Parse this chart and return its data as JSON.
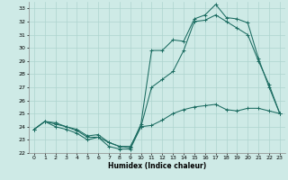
{
  "xlabel": "Humidex (Indice chaleur)",
  "ylabel": "",
  "bg_color": "#ceeae6",
  "grid_color": "#aed4cf",
  "line_color": "#1a6b60",
  "xlim": [
    -0.5,
    23.5
  ],
  "ylim": [
    22,
    33.5
  ],
  "xticks": [
    0,
    1,
    2,
    3,
    4,
    5,
    6,
    7,
    8,
    9,
    10,
    11,
    12,
    13,
    14,
    15,
    16,
    17,
    18,
    19,
    20,
    21,
    22,
    23
  ],
  "yticks": [
    22,
    23,
    24,
    25,
    26,
    27,
    28,
    29,
    30,
    31,
    32,
    33
  ],
  "line1_x": [
    0,
    1,
    2,
    3,
    4,
    5,
    6,
    7,
    8,
    9,
    10,
    11,
    12,
    13,
    14,
    15,
    16,
    17,
    18,
    19,
    20,
    21,
    22,
    23
  ],
  "line1_y": [
    23.8,
    24.4,
    24.3,
    24.0,
    23.7,
    23.2,
    23.2,
    22.8,
    22.5,
    22.5,
    24.0,
    24.1,
    24.5,
    25.0,
    25.3,
    25.5,
    25.6,
    25.7,
    25.3,
    25.2,
    25.4,
    25.4,
    25.2,
    25.0
  ],
  "line2_x": [
    0,
    1,
    2,
    3,
    4,
    5,
    6,
    7,
    8,
    9,
    10,
    11,
    12,
    13,
    14,
    15,
    16,
    17,
    18,
    19,
    20,
    21,
    22,
    23
  ],
  "line2_y": [
    23.8,
    24.4,
    24.0,
    23.8,
    23.5,
    23.0,
    23.2,
    22.5,
    22.3,
    22.3,
    24.0,
    27.0,
    27.6,
    28.2,
    29.8,
    32.0,
    32.1,
    32.5,
    32.0,
    31.5,
    31.0,
    29.0,
    27.2,
    25.0
  ],
  "line3_x": [
    0,
    1,
    2,
    3,
    4,
    5,
    6,
    7,
    8,
    9,
    10,
    11,
    12,
    13,
    14,
    15,
    16,
    17,
    18,
    19,
    20,
    21,
    22,
    23
  ],
  "line3_y": [
    23.8,
    24.4,
    24.2,
    24.0,
    23.8,
    23.3,
    23.4,
    22.8,
    22.5,
    22.4,
    24.2,
    29.8,
    29.8,
    30.6,
    30.5,
    32.2,
    32.5,
    33.3,
    32.3,
    32.2,
    31.9,
    29.2,
    27.0,
    25.0
  ]
}
